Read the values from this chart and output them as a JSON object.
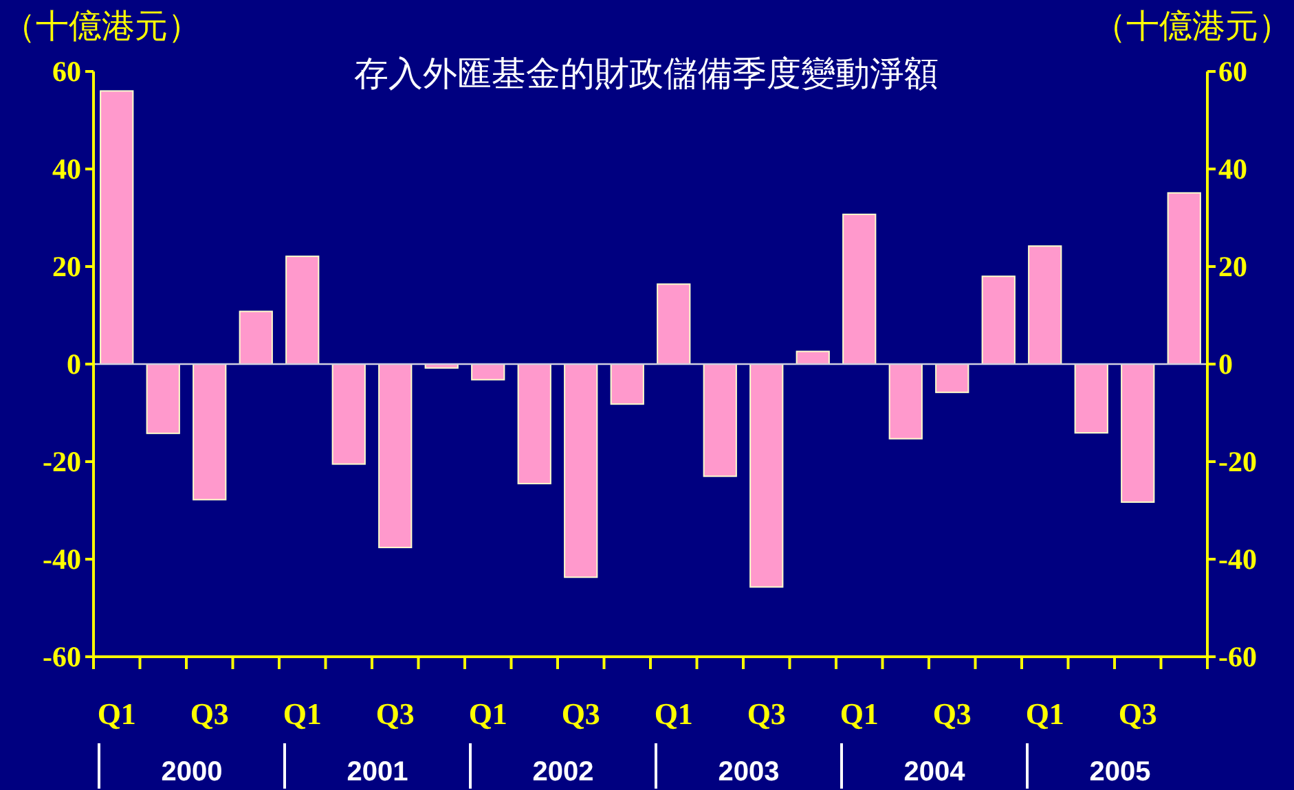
{
  "chart_data": {
    "type": "bar",
    "title": "存入外匯基金的財政儲備季度變動淨額",
    "ylabel": "（十億港元）",
    "y2label": "（十億港元）",
    "categories": [
      "Q1",
      null,
      "Q3",
      null,
      "Q1",
      null,
      "Q3",
      null,
      "Q1",
      null,
      "Q3",
      null,
      "Q1",
      null,
      "Q3",
      null,
      "Q1",
      null,
      "Q3",
      null,
      "Q1",
      null,
      "Q3",
      null
    ],
    "values": [
      56,
      -14.2,
      -27.8,
      10.8,
      22.1,
      -20.5,
      -37.6,
      -0.8,
      -3.2,
      -24.5,
      -43.7,
      -8.2,
      16.4,
      -23,
      -45.7,
      2.6,
      30.7,
      -15.3,
      -5.8,
      18,
      24.2,
      -14.1,
      -28.3,
      35.1
    ],
    "color": "#ff99cc",
    "ylim": [
      -60,
      60
    ],
    "yticks": [
      -60,
      -40,
      -20,
      0,
      20,
      40,
      60
    ],
    "y2lim": [
      -60,
      60
    ],
    "y2ticks": [
      -60,
      -40,
      -20,
      0,
      20,
      40,
      60
    ],
    "annotations": [
      "2000",
      "2001",
      "2002",
      "2003",
      "2004",
      "2005"
    ]
  }
}
